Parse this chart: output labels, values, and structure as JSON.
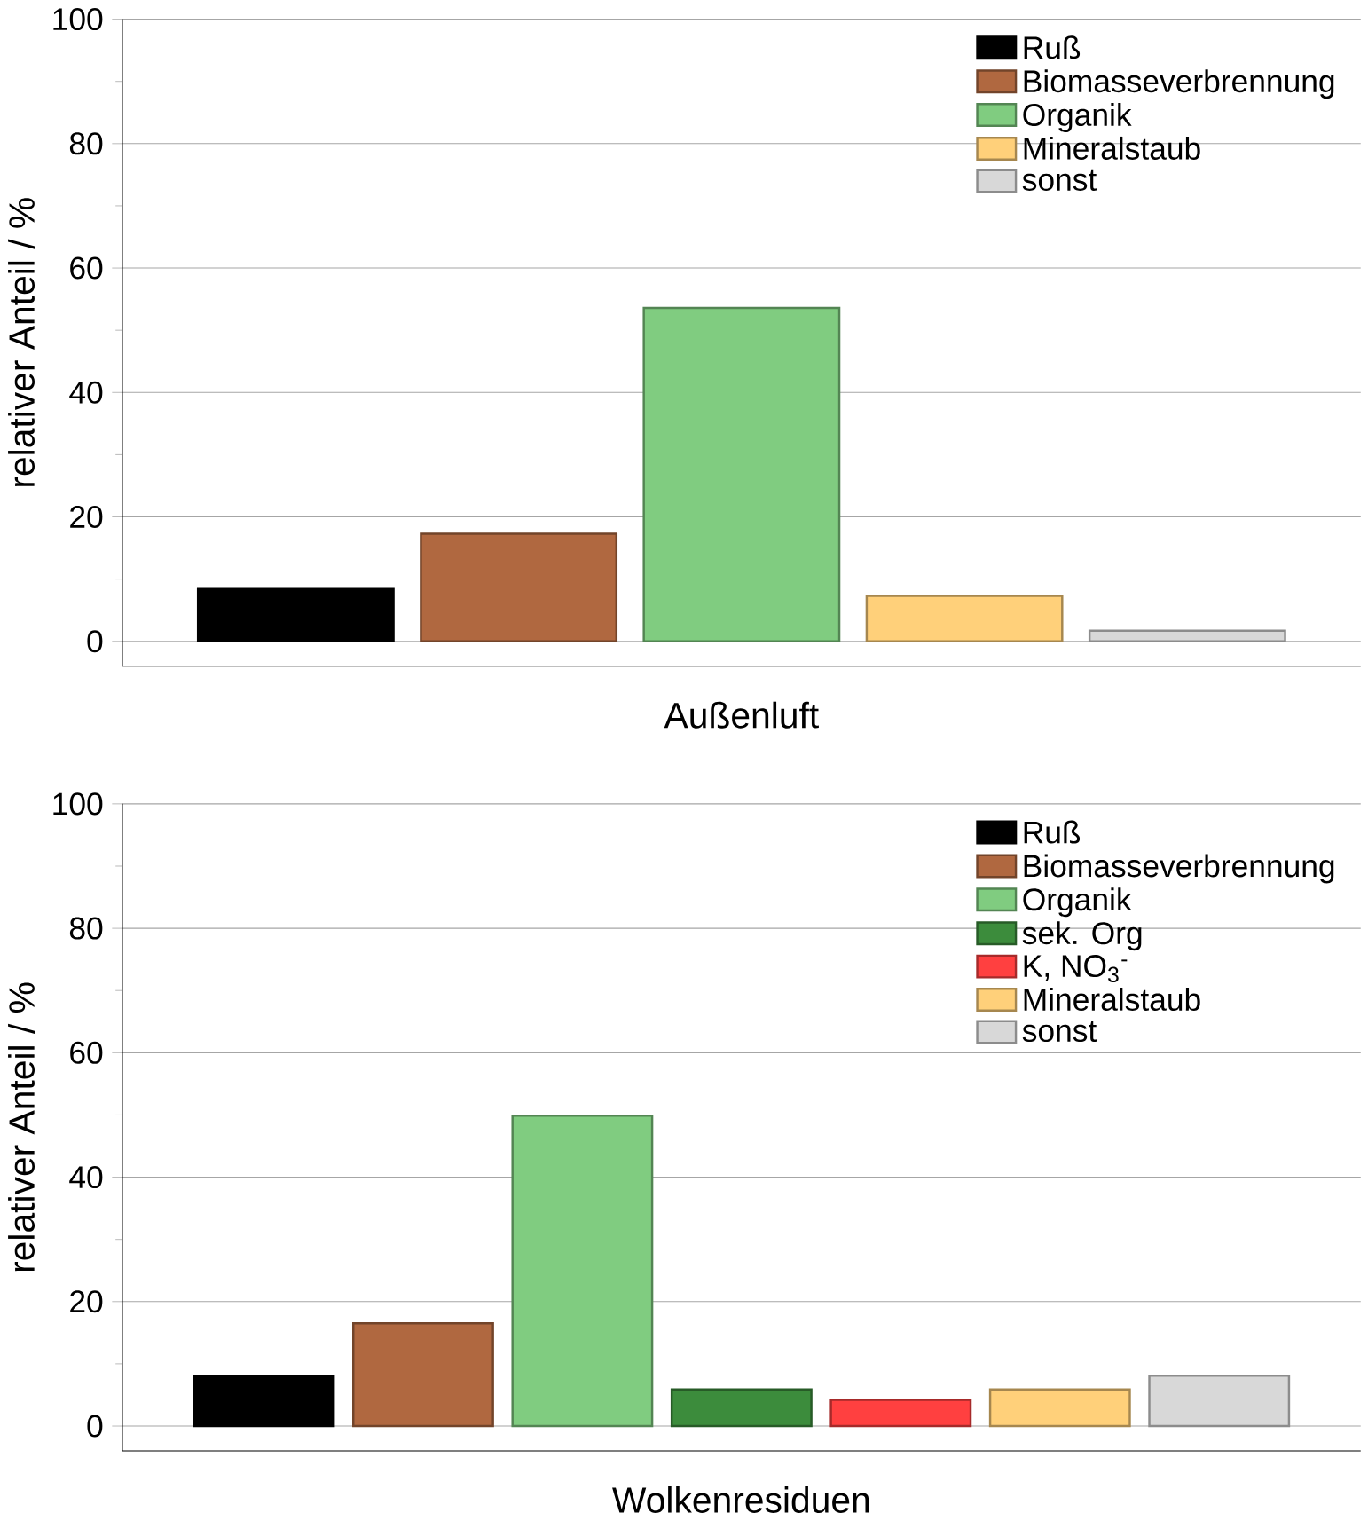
{
  "chart_data": [
    {
      "type": "bar",
      "xlabel": "Außenluft",
      "ylabel": "relativer Anteil / %",
      "categories": [
        null
      ],
      "ylim": [
        -4,
        100
      ],
      "yticks": [
        0,
        20,
        40,
        60,
        80,
        100
      ],
      "grid": "y",
      "legend": "top right",
      "series": [
        {
          "name": "Ruß",
          "color": "#000000",
          "values": [
            8.4
          ]
        },
        {
          "name": "Biomasseverbrennung",
          "color": "#b06840",
          "values": [
            17.3
          ]
        },
        {
          "name": "Organik",
          "color": "#80cc80",
          "values": [
            53.6
          ]
        },
        {
          "name": "Mineralstaub",
          "color": "#ffd07a",
          "values": [
            7.3
          ]
        },
        {
          "name": "sonst",
          "color": "#d8d8d8",
          "values": [
            1.7
          ]
        }
      ]
    },
    {
      "type": "bar",
      "xlabel": "Wolkenresiduen",
      "ylabel": "relativer Anteil / %",
      "categories": [
        null
      ],
      "ylim": [
        -4,
        100
      ],
      "yticks": [
        0,
        20,
        40,
        60,
        80,
        100
      ],
      "grid": "y",
      "legend": "top right",
      "series": [
        {
          "name": "Ruß",
          "color": "#000000",
          "values": [
            8.1
          ]
        },
        {
          "name": "Biomasseverbrennung",
          "color": "#b06840",
          "values": [
            16.5
          ]
        },
        {
          "name": "Organik",
          "color": "#80cc80",
          "values": [
            49.9
          ]
        },
        {
          "name": "sek. Org",
          "color": "#3c8c3c",
          "values": [
            5.9
          ]
        },
        {
          "name": "K, NO$_{3}$$^{-}$",
          "color": "#ff4040",
          "values": [
            4.2
          ]
        },
        {
          "name": "Mineralstaub",
          "color": "#ffd07a",
          "values": [
            5.9
          ]
        },
        {
          "name": "sonst",
          "color": "#d8d8d8",
          "values": [
            8.1
          ]
        }
      ]
    }
  ]
}
